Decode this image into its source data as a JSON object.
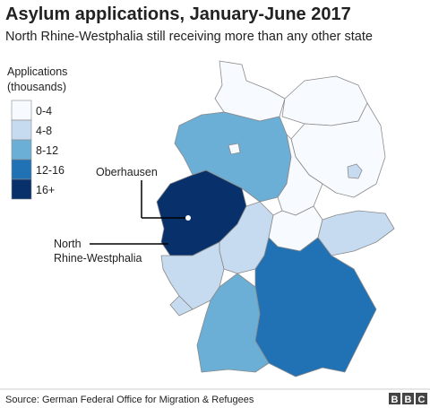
{
  "title": "Asylum applications, January-June 2017",
  "subtitle": "North Rhine-Westphalia still receiving more than any other state",
  "legend": {
    "title": [
      "Applications",
      "(thousands)"
    ],
    "items": [
      {
        "label": "0-4",
        "color": "#f7fbff"
      },
      {
        "label": "4-8",
        "color": "#c6dbef"
      },
      {
        "label": "8-12",
        "color": "#6baed6"
      },
      {
        "label": "12-16",
        "color": "#2171b5"
      },
      {
        "label": "16+",
        "color": "#08306b"
      }
    ]
  },
  "annotations": {
    "city": "Oberhausen",
    "state": [
      "North",
      "Rhine-Westphalia"
    ]
  },
  "source": "Source: German Federal Office for Migration & Refugees",
  "logo": [
    "B",
    "B",
    "C"
  ]
}
